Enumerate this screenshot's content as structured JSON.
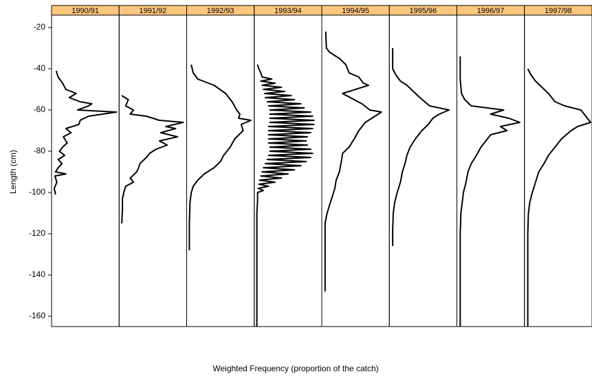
{
  "chart_data": {
    "type": "line",
    "x_label": "Weighted Frequency (proportion of the catch)",
    "y_label": "Length (cm)",
    "ylim": [
      -165,
      -14
    ],
    "yticks": [
      -20,
      -40,
      -60,
      -80,
      -100,
      -120,
      -140,
      -160
    ],
    "xlim": [
      0,
      100
    ],
    "color": "#000000",
    "strip_color": "#ffc67f",
    "panels": [
      {
        "name": "1990/91",
        "y": [
          -41,
          -44,
          -47,
          -50,
          -52,
          -54,
          -56,
          -57,
          -58,
          -60,
          -61,
          -63,
          -65,
          -67,
          -69,
          -71,
          -73,
          -76,
          -78,
          -80,
          -82,
          -84,
          -86,
          -88,
          -90,
          -91,
          -92,
          -95,
          -98,
          -101
        ],
        "x": [
          5,
          8,
          15,
          20,
          36,
          25,
          42,
          60,
          55,
          38,
          98,
          55,
          42,
          40,
          20,
          28,
          16,
          22,
          15,
          10,
          18,
          8,
          14,
          8,
          4,
          20,
          3,
          6,
          2,
          4
        ]
      },
      {
        "name": "1991/92",
        "y": [
          -53,
          -55,
          -58,
          -60,
          -62,
          -63,
          -65,
          -66,
          -68,
          -69,
          -71,
          -73,
          -75,
          -77,
          -79,
          -81,
          -83,
          -86,
          -88,
          -90,
          -93,
          -95,
          -97,
          -100,
          -103,
          -108,
          -115
        ],
        "x": [
          2,
          12,
          8,
          20,
          15,
          40,
          60,
          97,
          70,
          85,
          62,
          88,
          60,
          72,
          55,
          45,
          40,
          30,
          28,
          25,
          15,
          20,
          8,
          5,
          3,
          3,
          2
        ]
      },
      {
        "name": "1992/93",
        "y": [
          -38,
          -42,
          -45,
          -48,
          -52,
          -56,
          -60,
          -62,
          -64,
          -65,
          -67,
          -70,
          -74,
          -78,
          -82,
          -85,
          -88,
          -91,
          -94,
          -97,
          -100,
          -105,
          -115,
          -128
        ],
        "x": [
          5,
          8,
          15,
          40,
          58,
          68,
          75,
          80,
          78,
          97,
          82,
          85,
          72,
          65,
          55,
          50,
          40,
          25,
          15,
          8,
          5,
          3,
          2,
          2
        ]
      },
      {
        "name": "1993/94",
        "y": [
          -38,
          -40,
          -42,
          -44,
          -45,
          -46,
          -47,
          -48,
          -49,
          -50,
          -51,
          -52,
          -53,
          -54,
          -55,
          -56,
          -57,
          -58,
          -59,
          -60,
          -61,
          -62,
          -63,
          -64,
          -65,
          -66,
          -67,
          -68,
          -69,
          -70,
          -71,
          -72,
          -73,
          -74,
          -75,
          -76,
          -77,
          -78,
          -79,
          -80,
          -81,
          -82,
          -83,
          -84,
          -85,
          -86,
          -87,
          -88,
          -89,
          -90,
          -91,
          -92,
          -93,
          -94,
          -95,
          -96,
          -97,
          -98,
          -99,
          -100,
          -104,
          -110,
          -120,
          -140,
          -165
        ],
        "x": [
          3,
          5,
          8,
          10,
          25,
          8,
          30,
          10,
          40,
          12,
          45,
          14,
          55,
          15,
          60,
          18,
          70,
          20,
          75,
          22,
          85,
          22,
          88,
          22,
          90,
          22,
          90,
          20,
          88,
          20,
          85,
          20,
          80,
          20,
          78,
          20,
          80,
          22,
          85,
          22,
          88,
          20,
          85,
          18,
          78,
          15,
          70,
          12,
          60,
          10,
          50,
          8,
          40,
          6,
          30,
          5,
          20,
          4,
          12,
          3,
          3,
          2,
          2,
          2,
          2
        ]
      },
      {
        "name": "1994/95",
        "y": [
          -22,
          -30,
          -32,
          -35,
          -38,
          -42,
          -44,
          -47,
          -48,
          -50,
          -52,
          -54,
          -57,
          -60,
          -61,
          -63,
          -66,
          -70,
          -74,
          -78,
          -81,
          -85,
          -90,
          -94,
          -98,
          -102,
          -106,
          -110,
          -115,
          -120,
          -148
        ],
        "x": [
          4,
          5,
          10,
          25,
          35,
          40,
          55,
          62,
          70,
          50,
          30,
          42,
          60,
          72,
          90,
          80,
          65,
          55,
          48,
          40,
          30,
          28,
          25,
          20,
          18,
          14,
          10,
          6,
          3,
          3,
          3
        ]
      },
      {
        "name": "1995/96",
        "y": [
          -30,
          -40,
          -43,
          -46,
          -48,
          -51,
          -54,
          -58,
          -60,
          -62,
          -64,
          -67,
          -70,
          -74,
          -78,
          -82,
          -86,
          -90,
          -95,
          -100,
          -105,
          -110,
          -118,
          -126
        ],
        "x": [
          3,
          3,
          8,
          15,
          25,
          35,
          45,
          60,
          90,
          75,
          65,
          58,
          48,
          38,
          30,
          25,
          22,
          18,
          15,
          10,
          6,
          4,
          3,
          3
        ]
      },
      {
        "name": "1996/97",
        "y": [
          -34,
          -45,
          -52,
          -55,
          -58,
          -60,
          -62,
          -64,
          -66,
          -68,
          -70,
          -72,
          -74,
          -78,
          -82,
          -86,
          -90,
          -95,
          -100,
          -105,
          -110,
          -120,
          -140,
          -165
        ],
        "x": [
          3,
          3,
          5,
          10,
          20,
          70,
          50,
          78,
          95,
          65,
          75,
          50,
          45,
          35,
          28,
          20,
          15,
          12,
          8,
          6,
          4,
          3,
          3,
          3
        ]
      },
      {
        "name": "1997/98",
        "y": [
          -40,
          -43,
          -46,
          -49,
          -52,
          -56,
          -58,
          -60,
          -62,
          -64,
          -66,
          -68,
          -70,
          -74,
          -78,
          -82,
          -86,
          -90,
          -95,
          -100,
          -105,
          -110,
          -120,
          -140,
          -165
        ],
        "x": [
          3,
          8,
          15,
          25,
          35,
          45,
          60,
          85,
          90,
          95,
          100,
          80,
          70,
          55,
          45,
          35,
          28,
          20,
          15,
          10,
          6,
          4,
          3,
          3,
          3
        ]
      }
    ]
  }
}
